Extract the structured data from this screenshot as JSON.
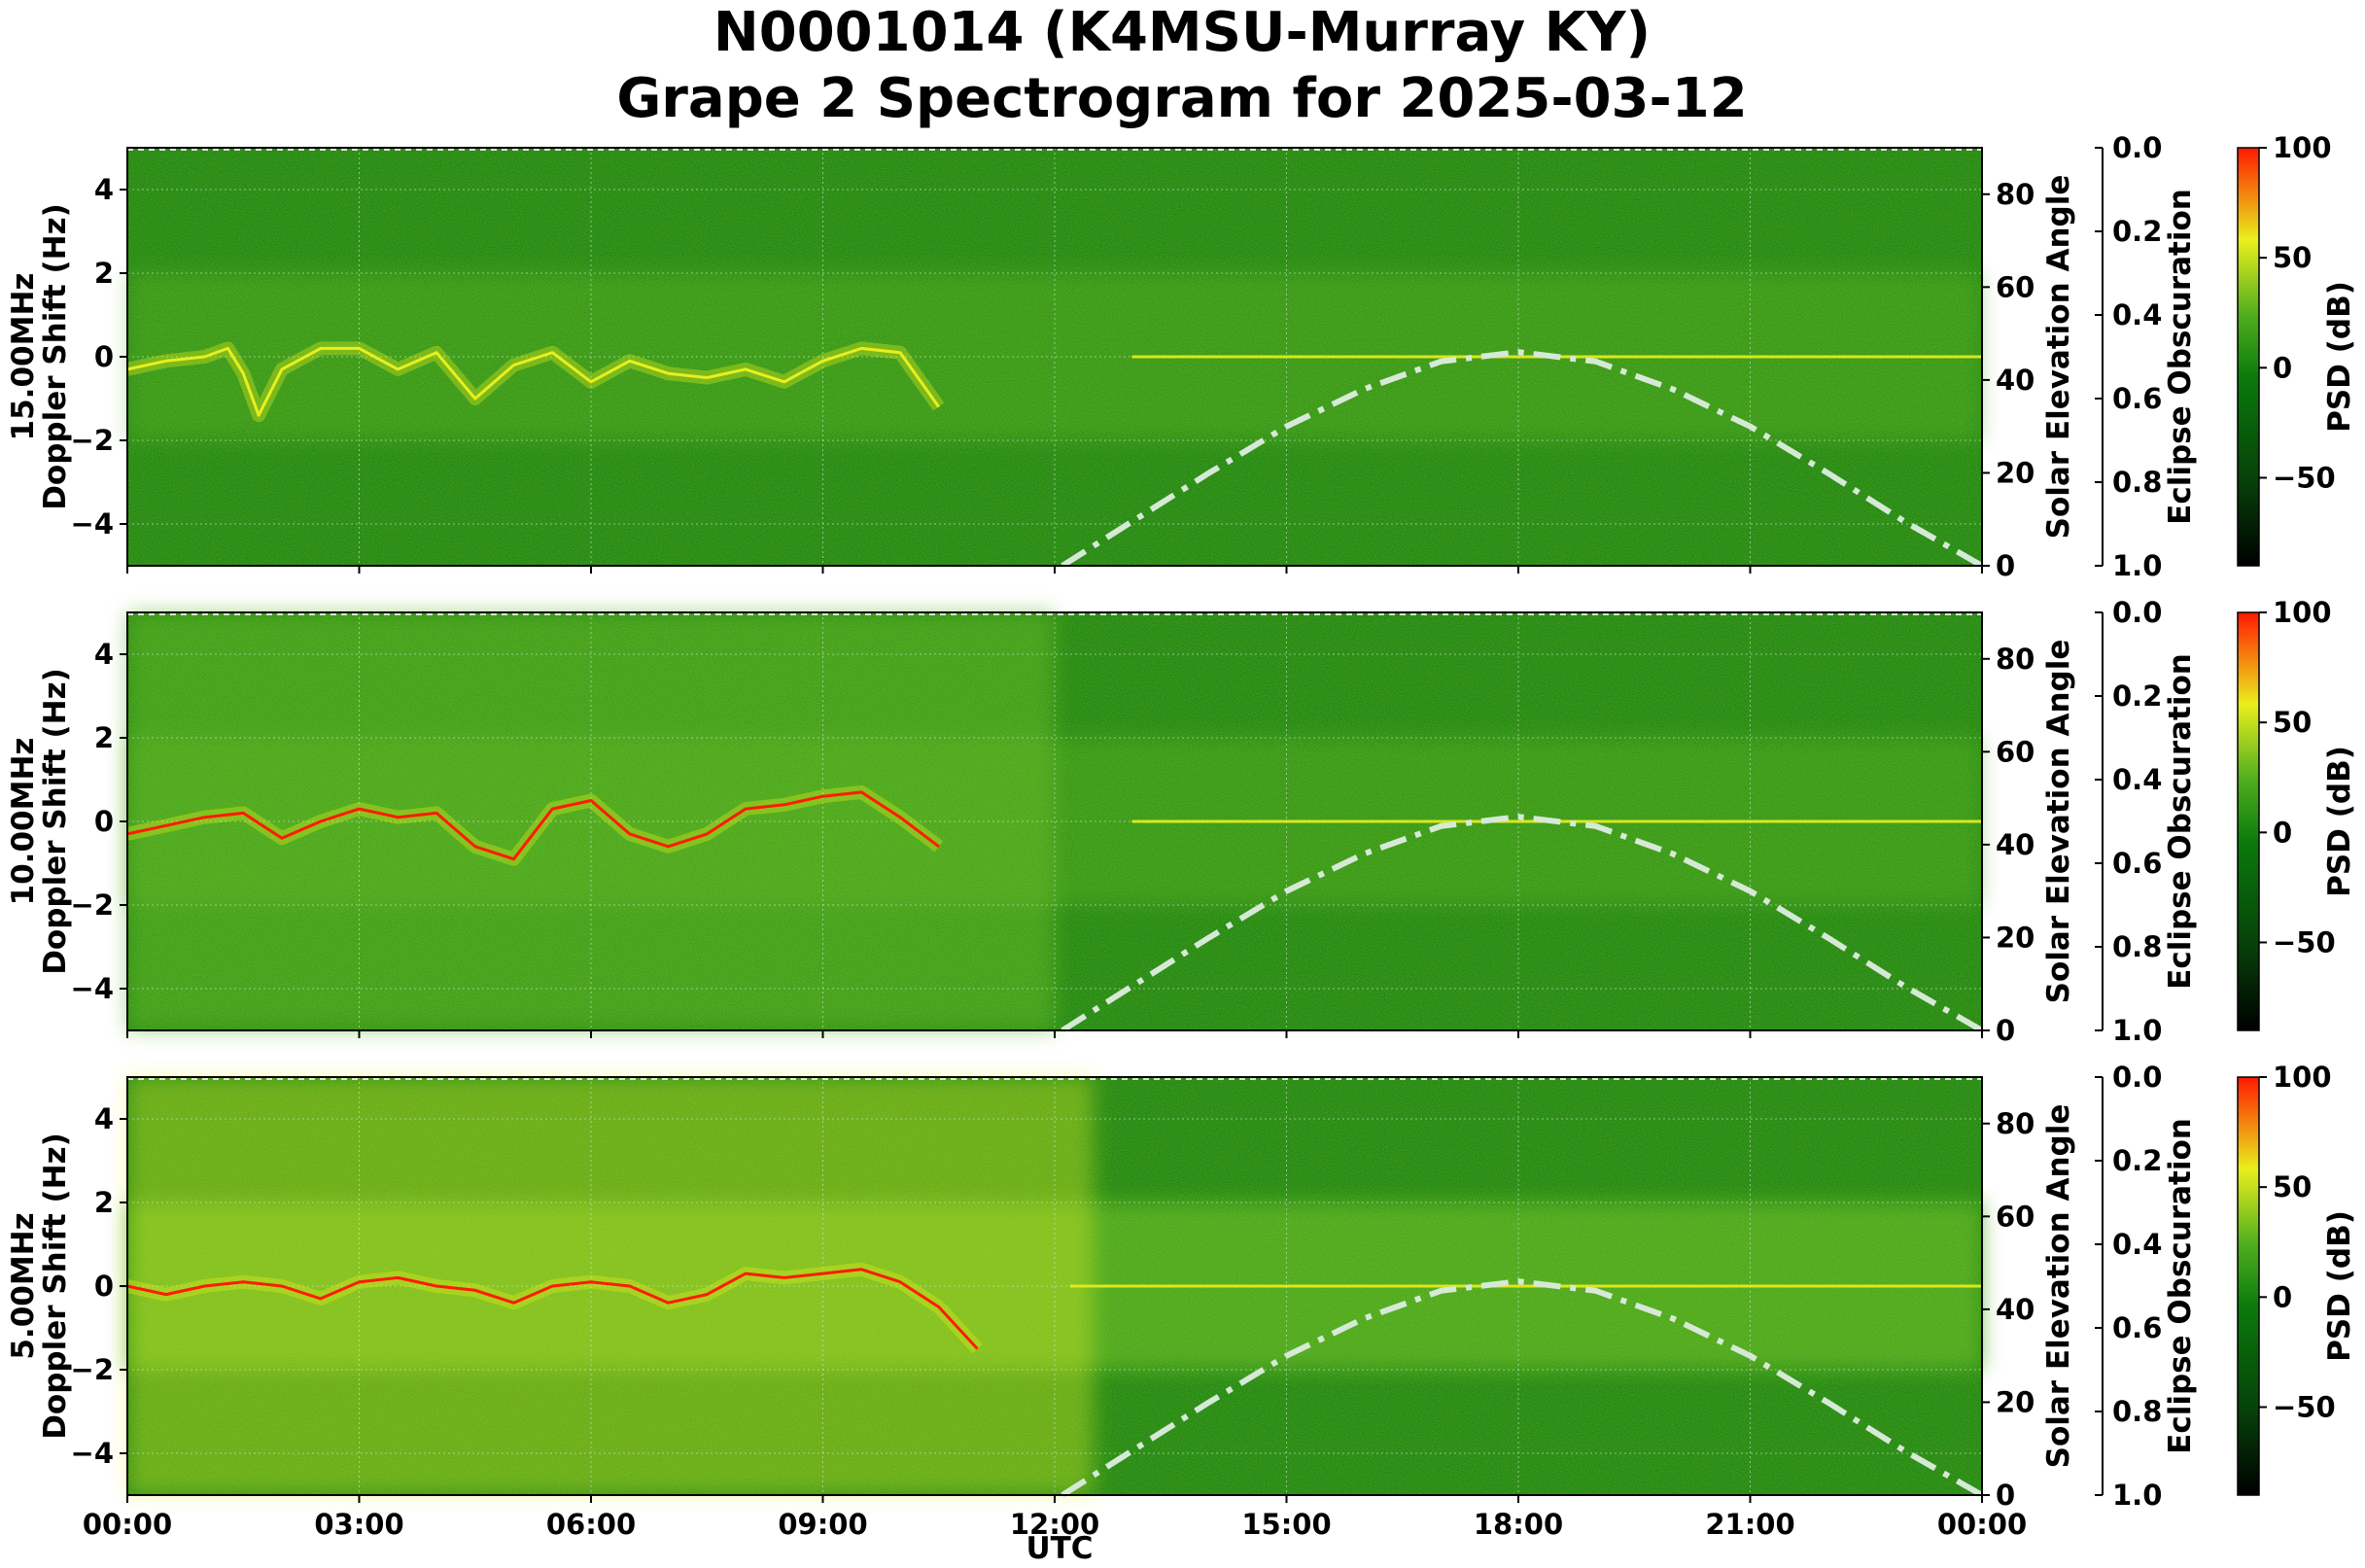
{
  "title_line1": "N0001014 (K4MSU-Murray KY)",
  "title_line2": "Grape 2 Spectrogram for 2025-03-12",
  "colors": {
    "background_green": "#0b7a0b",
    "mid_green": "#4fae1e",
    "yellow": "#e9ef1d",
    "red": "#ff1a00",
    "elevation_curve": "#d6e9d6"
  },
  "chart_data": [
    {
      "type": "heatmap",
      "panel": "15.00MHz",
      "ylabel_freq": "15.00MHz",
      "ylabel": "Doppler Shift (Hz)",
      "right_ylabel": "Solar Elevation Angle",
      "obscuration_label": "Eclipse Obscuration",
      "colorbar_label": "PSD (dB)",
      "ylim": [
        -5,
        5
      ],
      "y_ticks": [
        "4",
        "2",
        "0",
        "−2",
        "−4"
      ],
      "right_ylim": [
        0,
        90
      ],
      "right_ticks": [
        "80",
        "60",
        "40",
        "20",
        "0"
      ],
      "obscuration_ticks": [
        "0.0",
        "0.2",
        "0.4",
        "0.6",
        "0.8",
        "1.0"
      ],
      "colorbar_ticks": [
        "100",
        "50",
        "0",
        "−50"
      ],
      "colorbar_range": [
        -90,
        100
      ]
    },
    {
      "type": "heatmap",
      "panel": "10.00MHz",
      "ylabel_freq": "10.00MHz",
      "ylabel": "Doppler Shift (Hz)",
      "right_ylabel": "Solar Elevation Angle",
      "obscuration_label": "Eclipse Obscuration",
      "colorbar_label": "PSD (dB)",
      "ylim": [
        -5,
        5
      ],
      "y_ticks": [
        "4",
        "2",
        "0",
        "−2",
        "−4"
      ],
      "right_ylim": [
        0,
        90
      ],
      "right_ticks": [
        "80",
        "60",
        "40",
        "20",
        "0"
      ],
      "obscuration_ticks": [
        "0.0",
        "0.2",
        "0.4",
        "0.6",
        "0.8",
        "1.0"
      ],
      "colorbar_ticks": [
        "100",
        "50",
        "0",
        "−50"
      ],
      "colorbar_range": [
        -90,
        100
      ]
    },
    {
      "type": "heatmap",
      "panel": "5.00MHz",
      "ylabel_freq": "5.00MHz",
      "ylabel": "Doppler Shift (Hz)",
      "right_ylabel": "Solar Elevation Angle",
      "obscuration_label": "Eclipse Obscuration",
      "colorbar_label": "PSD (dB)",
      "ylim": [
        -5,
        5
      ],
      "y_ticks": [
        "4",
        "2",
        "0",
        "−2",
        "−4"
      ],
      "right_ylim": [
        0,
        90
      ],
      "right_ticks": [
        "80",
        "60",
        "40",
        "20",
        "0"
      ],
      "obscuration_ticks": [
        "0.0",
        "0.2",
        "0.4",
        "0.6",
        "0.8",
        "1.0"
      ],
      "colorbar_ticks": [
        "100",
        "50",
        "0",
        "−50"
      ],
      "colorbar_range": [
        -90,
        100
      ]
    }
  ],
  "x_axis": {
    "label": "UTC",
    "ticks": [
      "00:00",
      "03:00",
      "06:00",
      "09:00",
      "12:00",
      "15:00",
      "18:00",
      "21:00",
      "00:00"
    ],
    "tick_hours": [
      0,
      3,
      6,
      9,
      12,
      15,
      18,
      21,
      24
    ]
  },
  "solar_elevation": {
    "hours": [
      12.1,
      13,
      14,
      15,
      16,
      17,
      18,
      19,
      20,
      21,
      22,
      23,
      24
    ],
    "degrees": [
      0,
      9.5,
      20,
      30,
      38,
      44,
      46,
      44,
      38,
      30,
      20,
      9.5,
      0
    ]
  },
  "doppler_traces": [
    {
      "panel": "15.00MHz",
      "hours": [
        0,
        0.5,
        1,
        1.3,
        1.5,
        1.7,
        2,
        2.5,
        3,
        3.5,
        4,
        4.5,
        5,
        5.5,
        6,
        6.5,
        7,
        7.5,
        8,
        8.5,
        9,
        9.5,
        10,
        10.5
      ],
      "hz": [
        -0.3,
        -0.1,
        0,
        0.2,
        -0.4,
        -1.4,
        -0.3,
        0.2,
        0.2,
        -0.3,
        0.1,
        -1,
        -0.2,
        0.1,
        -0.6,
        -0.1,
        -0.4,
        -0.5,
        -0.3,
        -0.6,
        -0.1,
        0.2,
        0.1,
        -1.2
      ]
    },
    {
      "panel": "10.00MHz",
      "hours": [
        0,
        0.5,
        1,
        1.5,
        2,
        2.5,
        3,
        3.5,
        4,
        4.5,
        5,
        5.5,
        6,
        6.5,
        7,
        7.5,
        8,
        8.5,
        9,
        9.5,
        10,
        10.5
      ],
      "hz": [
        -0.3,
        -0.1,
        0.1,
        0.2,
        -0.4,
        0,
        0.3,
        0.1,
        0.2,
        -0.6,
        -0.9,
        0.3,
        0.5,
        -0.3,
        -0.6,
        -0.3,
        0.3,
        0.4,
        0.6,
        0.7,
        0.1,
        -0.6
      ]
    },
    {
      "panel": "5.00MHz",
      "hours": [
        0,
        0.5,
        1,
        1.5,
        2,
        2.5,
        3,
        3.5,
        4,
        4.5,
        5,
        5.5,
        6,
        6.5,
        7,
        7.5,
        8,
        8.5,
        9,
        9.5,
        10,
        10.5,
        11
      ],
      "hz": [
        0,
        -0.2,
        0,
        0.1,
        0,
        -0.3,
        0.1,
        0.2,
        0,
        -0.1,
        -0.4,
        0,
        0.1,
        0,
        -0.4,
        -0.2,
        0.3,
        0.2,
        0.3,
        0.4,
        0.1,
        -0.5,
        -1.5
      ]
    }
  ]
}
